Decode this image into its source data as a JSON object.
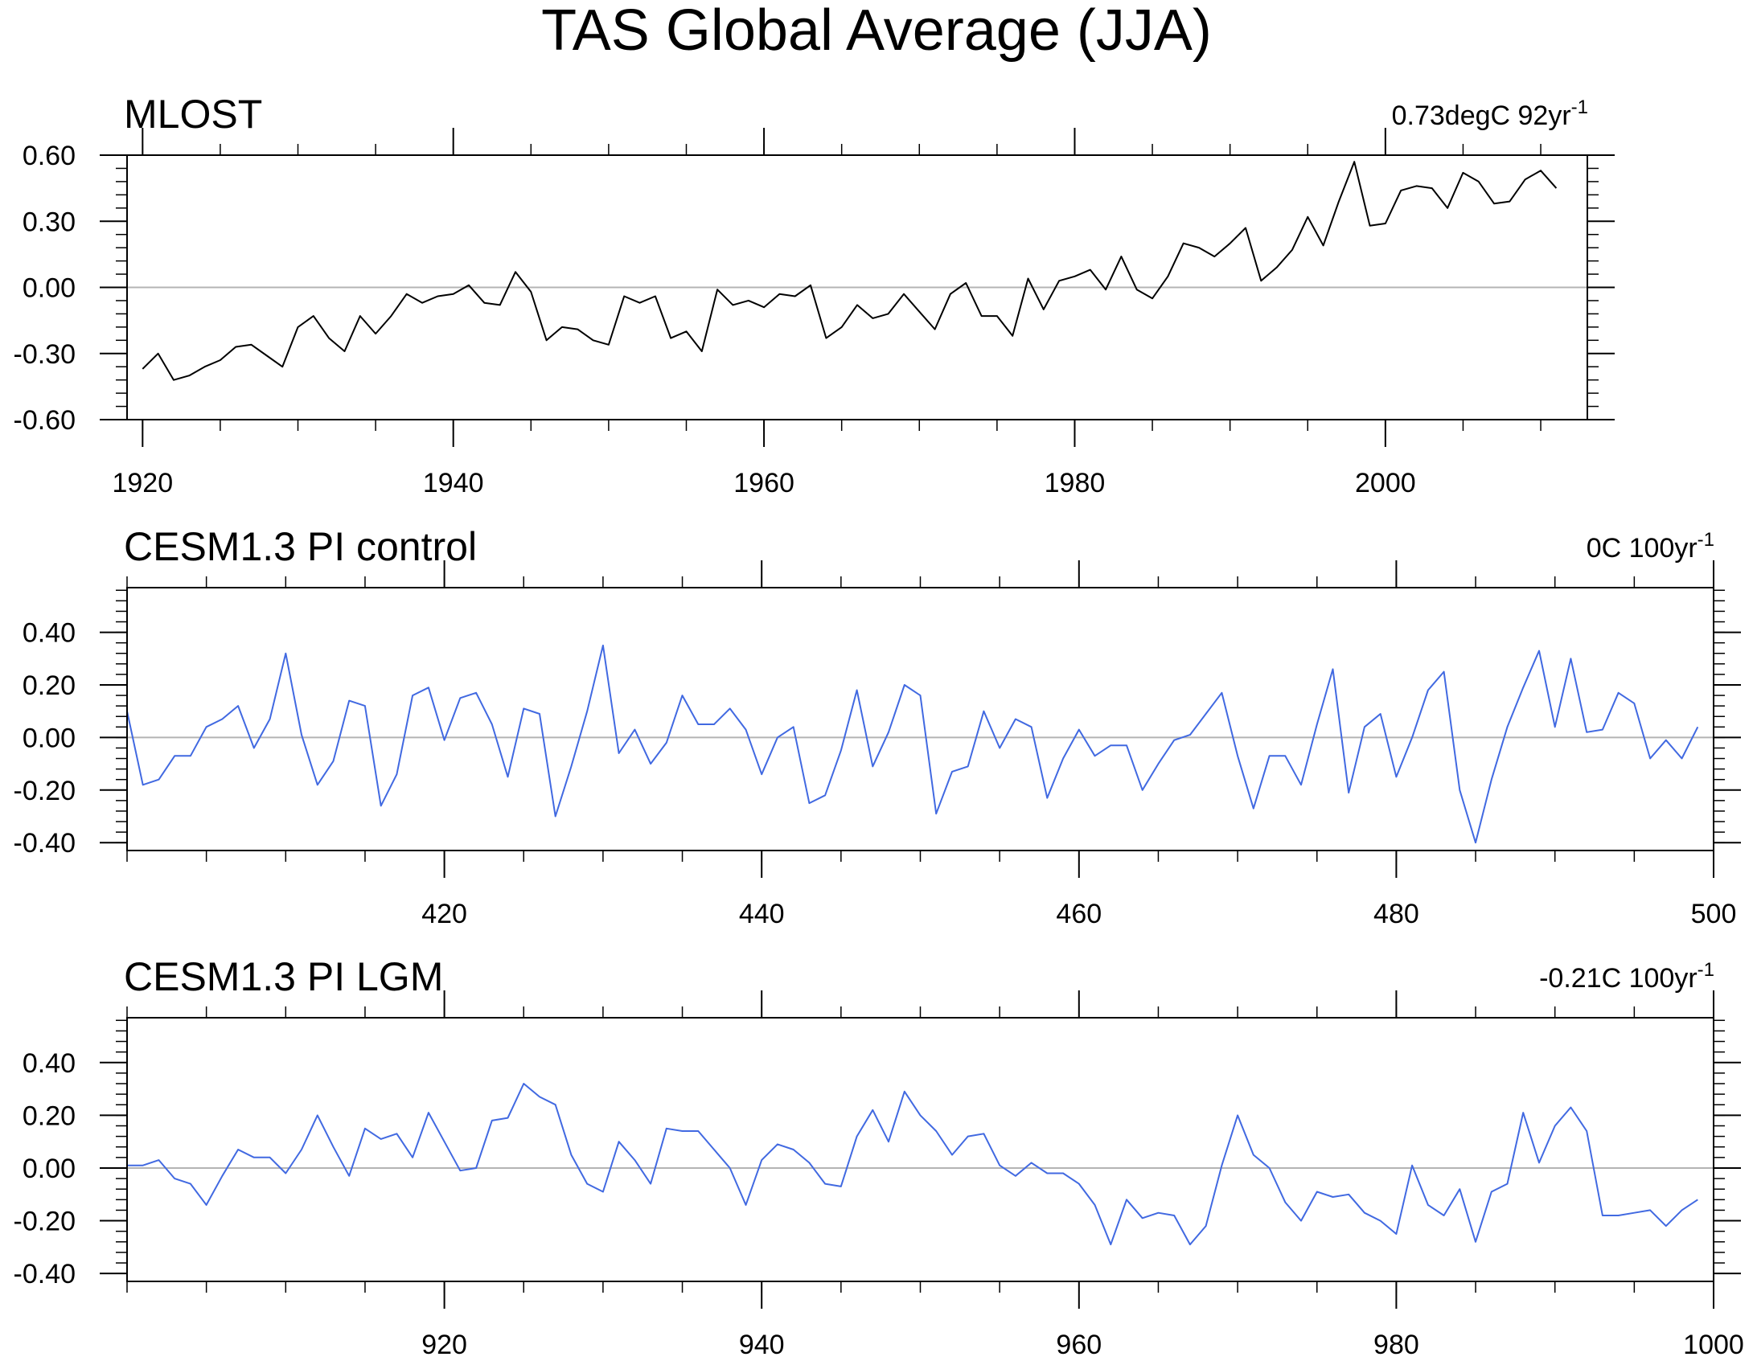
{
  "figure_title": "TAS Global Average (JJA)",
  "chart_data": [
    {
      "type": "line",
      "title": "MLOST",
      "annotation": "0.73degC 92yr",
      "annotation_exp": "-1",
      "color": "#000000",
      "xlim": [
        1919,
        2013
      ],
      "ylim": [
        -0.6,
        0.6
      ],
      "xticks": [
        1920,
        1940,
        1960,
        1980,
        2000
      ],
      "yticks": [
        0.6,
        0.3,
        0.0,
        -0.3,
        -0.6
      ],
      "ytick_labels": [
        "0.60",
        "0.30",
        "0.00",
        "-0.30",
        "-0.60"
      ],
      "minor_y_step": 0.06,
      "minor_x_step": 5,
      "x_start": 1920,
      "values": [
        -0.37,
        -0.3,
        -0.42,
        -0.4,
        -0.36,
        -0.33,
        -0.27,
        -0.26,
        -0.31,
        -0.36,
        -0.18,
        -0.13,
        -0.23,
        -0.29,
        -0.13,
        -0.21,
        -0.13,
        -0.03,
        -0.07,
        -0.04,
        -0.03,
        0.01,
        -0.07,
        -0.08,
        0.07,
        -0.02,
        -0.24,
        -0.18,
        -0.19,
        -0.24,
        -0.26,
        -0.04,
        -0.07,
        -0.04,
        -0.23,
        -0.2,
        -0.29,
        -0.01,
        -0.08,
        -0.06,
        -0.09,
        -0.03,
        -0.04,
        0.01,
        -0.23,
        -0.18,
        -0.08,
        -0.14,
        -0.12,
        -0.03,
        -0.11,
        -0.19,
        -0.03,
        0.02,
        -0.13,
        -0.13,
        -0.22,
        0.04,
        -0.1,
        0.03,
        0.05,
        0.08,
        -0.01,
        0.14,
        -0.01,
        -0.05,
        0.05,
        0.2,
        0.18,
        0.14,
        0.2,
        0.27,
        0.03,
        0.09,
        0.17,
        0.32,
        0.19,
        0.39,
        0.57,
        0.28,
        0.29,
        0.44,
        0.46,
        0.45,
        0.36,
        0.52,
        0.48,
        0.38,
        0.39,
        0.49,
        0.53,
        0.45
      ]
    },
    {
      "type": "line",
      "title": "CESM1.3 PI control",
      "annotation": "0C 100yr",
      "annotation_exp": "-1",
      "color": "#4169e1",
      "xlim": [
        400,
        500
      ],
      "ylim": [
        -0.43,
        0.57
      ],
      "xticks": [
        420,
        440,
        460,
        480,
        500
      ],
      "yticks": [
        0.4,
        0.2,
        0.0,
        -0.2,
        -0.4
      ],
      "ytick_labels": [
        "0.40",
        "0.20",
        "0.00",
        "-0.20",
        "-0.40"
      ],
      "minor_y_step": 0.04,
      "minor_x_step": 5,
      "x_start": 400,
      "values": [
        0.1,
        -0.18,
        -0.16,
        -0.07,
        -0.07,
        0.04,
        0.07,
        0.12,
        -0.04,
        0.07,
        0.32,
        0.01,
        -0.18,
        -0.09,
        0.14,
        0.12,
        -0.26,
        -0.14,
        0.16,
        0.19,
        -0.01,
        0.15,
        0.17,
        0.05,
        -0.15,
        0.11,
        0.09,
        -0.3,
        -0.11,
        0.1,
        0.35,
        -0.06,
        0.03,
        -0.1,
        -0.02,
        0.16,
        0.05,
        0.05,
        0.11,
        0.03,
        -0.14,
        0.0,
        0.04,
        -0.25,
        -0.22,
        -0.05,
        0.18,
        -0.11,
        0.02,
        0.2,
        0.16,
        -0.29,
        -0.13,
        -0.11,
        0.1,
        -0.04,
        0.07,
        0.04,
        -0.23,
        -0.08,
        0.03,
        -0.07,
        -0.03,
        -0.03,
        -0.2,
        -0.1,
        -0.01,
        0.01,
        0.09,
        0.17,
        -0.07,
        -0.27,
        -0.07,
        -0.07,
        -0.18,
        0.05,
        0.26,
        -0.21,
        0.04,
        0.09,
        -0.15,
        0.0,
        0.18,
        0.25,
        -0.2,
        -0.4,
        -0.16,
        0.04,
        0.19,
        0.33,
        0.04,
        0.3,
        0.02,
        0.03,
        0.17,
        0.13,
        -0.08,
        -0.01,
        -0.08,
        0.04
      ]
    },
    {
      "type": "line",
      "title": "CESM1.3 PI LGM",
      "annotation": "-0.21C 100yr",
      "annotation_exp": "-1",
      "color": "#4169e1",
      "xlim": [
        900,
        1000
      ],
      "ylim": [
        -0.43,
        0.57
      ],
      "xticks": [
        920,
        940,
        960,
        980,
        1000
      ],
      "yticks": [
        0.4,
        0.2,
        0.0,
        -0.2,
        -0.4
      ],
      "ytick_labels": [
        "0.40",
        "0.20",
        "0.00",
        "-0.20",
        "-0.40"
      ],
      "minor_y_step": 0.04,
      "minor_x_step": 5,
      "x_start": 900,
      "values": [
        0.01,
        0.01,
        0.03,
        -0.04,
        -0.06,
        -0.14,
        -0.03,
        0.07,
        0.04,
        0.04,
        -0.02,
        0.07,
        0.2,
        0.08,
        -0.03,
        0.15,
        0.11,
        0.13,
        0.04,
        0.21,
        0.1,
        -0.01,
        0.0,
        0.18,
        0.19,
        0.32,
        0.27,
        0.24,
        0.05,
        -0.06,
        -0.09,
        0.1,
        0.03,
        -0.06,
        0.15,
        0.14,
        0.14,
        0.07,
        0.0,
        -0.14,
        0.03,
        0.09,
        0.07,
        0.02,
        -0.06,
        -0.07,
        0.12,
        0.22,
        0.1,
        0.29,
        0.2,
        0.14,
        0.05,
        0.12,
        0.13,
        0.01,
        -0.03,
        0.02,
        -0.02,
        -0.02,
        -0.06,
        -0.14,
        -0.29,
        -0.12,
        -0.19,
        -0.17,
        -0.18,
        -0.29,
        -0.22,
        0.01,
        0.2,
        0.05,
        0.0,
        -0.13,
        -0.2,
        -0.09,
        -0.11,
        -0.1,
        -0.17,
        -0.2,
        -0.25,
        0.01,
        -0.14,
        -0.18,
        -0.08,
        -0.28,
        -0.09,
        -0.06,
        0.21,
        0.02,
        0.16,
        0.23,
        0.14,
        -0.18,
        -0.18,
        -0.17,
        -0.16,
        -0.22,
        -0.16,
        -0.12
      ]
    }
  ]
}
